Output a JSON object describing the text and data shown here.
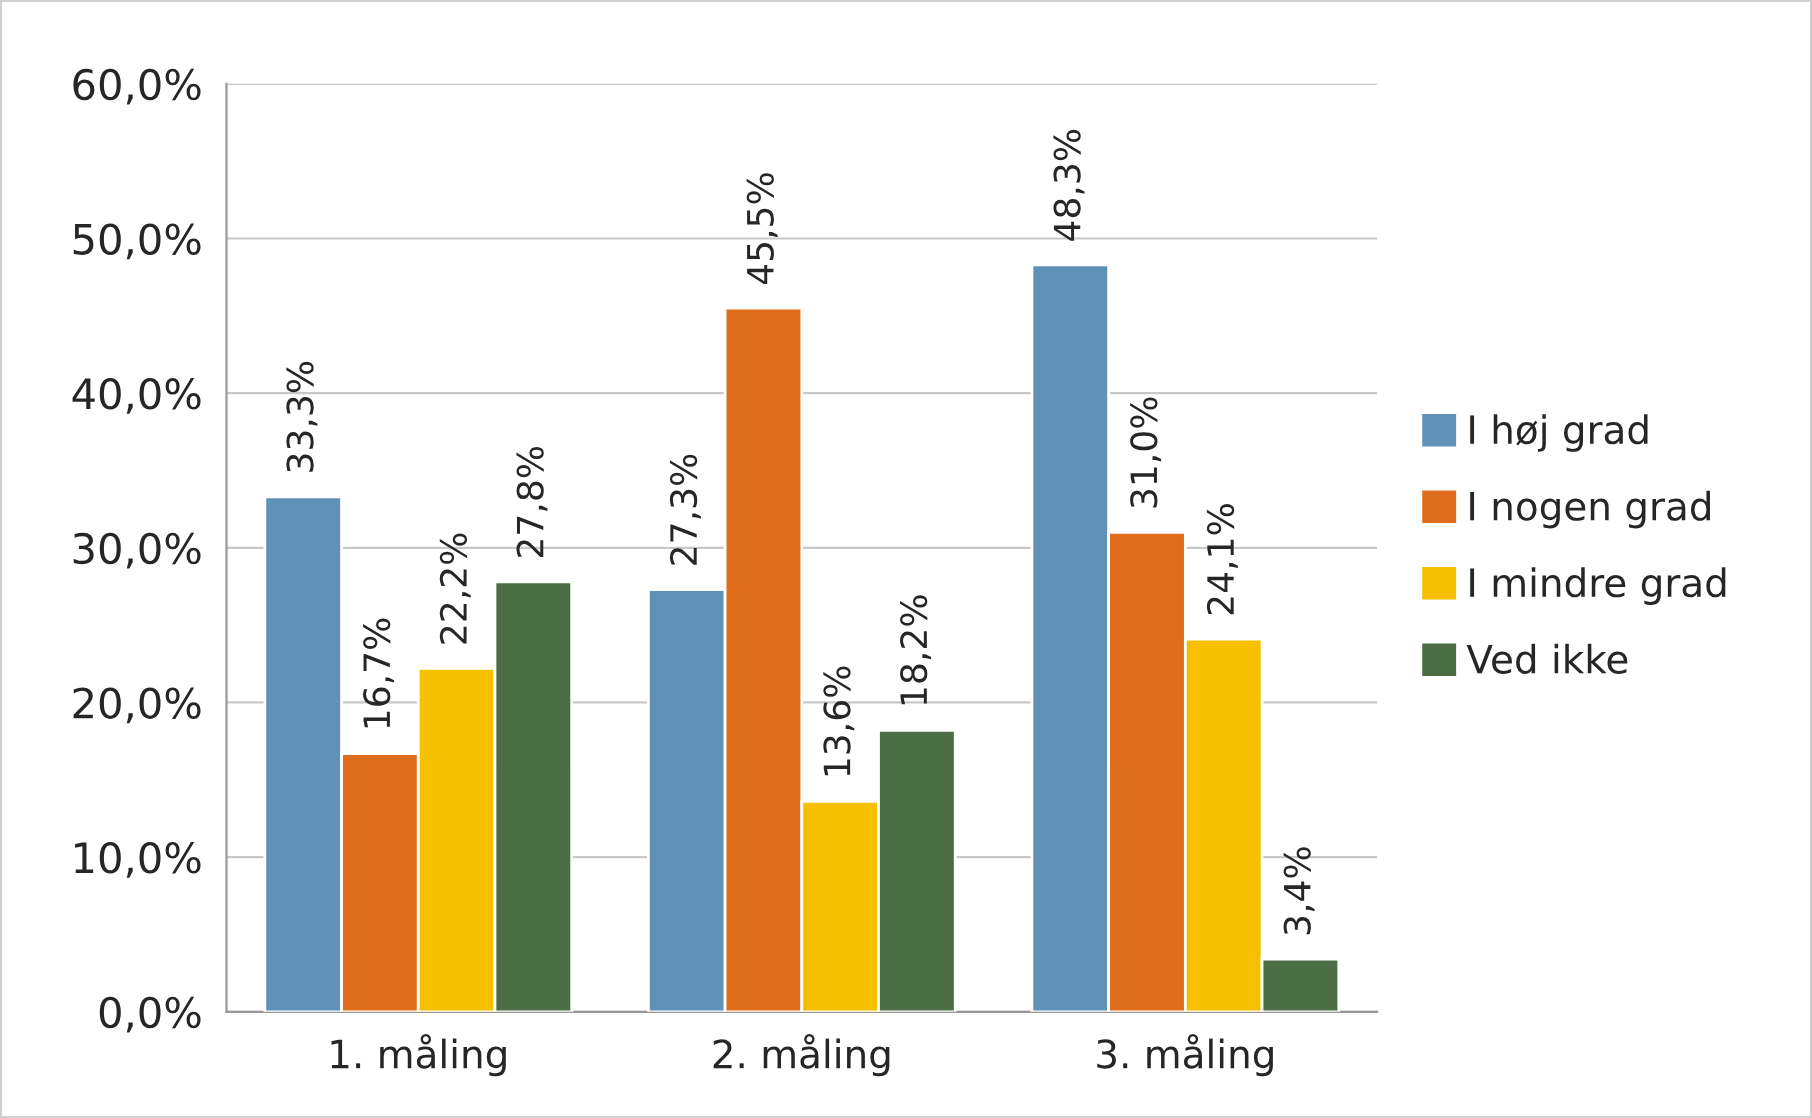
{
  "chart_data": {
    "type": "bar",
    "categories": [
      "1. måling",
      "2. måling",
      "3. måling"
    ],
    "series": [
      {
        "name": "I høj grad",
        "color": "#6092b8",
        "values": [
          33.3,
          27.3,
          48.3
        ],
        "value_labels": [
          "33,3%",
          "27,3%",
          "48,3%"
        ]
      },
      {
        "name": "I nogen grad",
        "color": "#e06d1b",
        "values": [
          16.7,
          45.5,
          31.0
        ],
        "value_labels": [
          "16,7%",
          "45,5%",
          "31,0%"
        ]
      },
      {
        "name": "I mindre grad",
        "color": "#f6c000",
        "values": [
          22.2,
          13.6,
          24.1
        ],
        "value_labels": [
          "22,2%",
          "13,6%",
          "24,1%"
        ]
      },
      {
        "name": "Ved ikke",
        "color": "#4b6e44",
        "values": [
          27.8,
          18.2,
          3.4
        ],
        "value_labels": [
          "27,8%",
          "18,2%",
          "3,4%"
        ]
      }
    ],
    "ylim": [
      0,
      60
    ],
    "yticks": [
      {
        "value": 0,
        "label": "0,0%"
      },
      {
        "value": 10,
        "label": "10,0%"
      },
      {
        "value": 20,
        "label": "20,0%"
      },
      {
        "value": 30,
        "label": "30,0%"
      },
      {
        "value": 40,
        "label": "40,0%"
      },
      {
        "value": 50,
        "label": "50,0%"
      },
      {
        "value": 60,
        "label": "60,0%"
      }
    ],
    "grid": "y",
    "legend": "right"
  }
}
